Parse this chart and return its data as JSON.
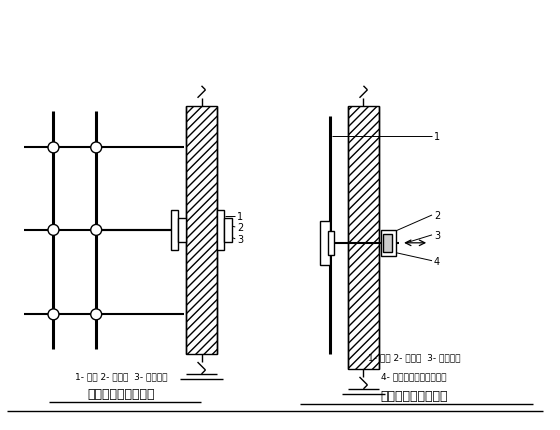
{
  "bg_color": "#ffffff",
  "line_color": "#000000",
  "fig_width": 5.6,
  "fig_height": 4.31,
  "dpi": 100,
  "left_label1": "1- 垫木 2- 短钢管  3- 直角扣件",
  "left_title": "双排脚手架（平面）",
  "right_label1": "1- 垫木 2- 短钢管  3- 直角扣件",
  "right_label2": "4- 连向立柱或横向水平杆",
  "right_title": "门窗洞口处的连墙点"
}
